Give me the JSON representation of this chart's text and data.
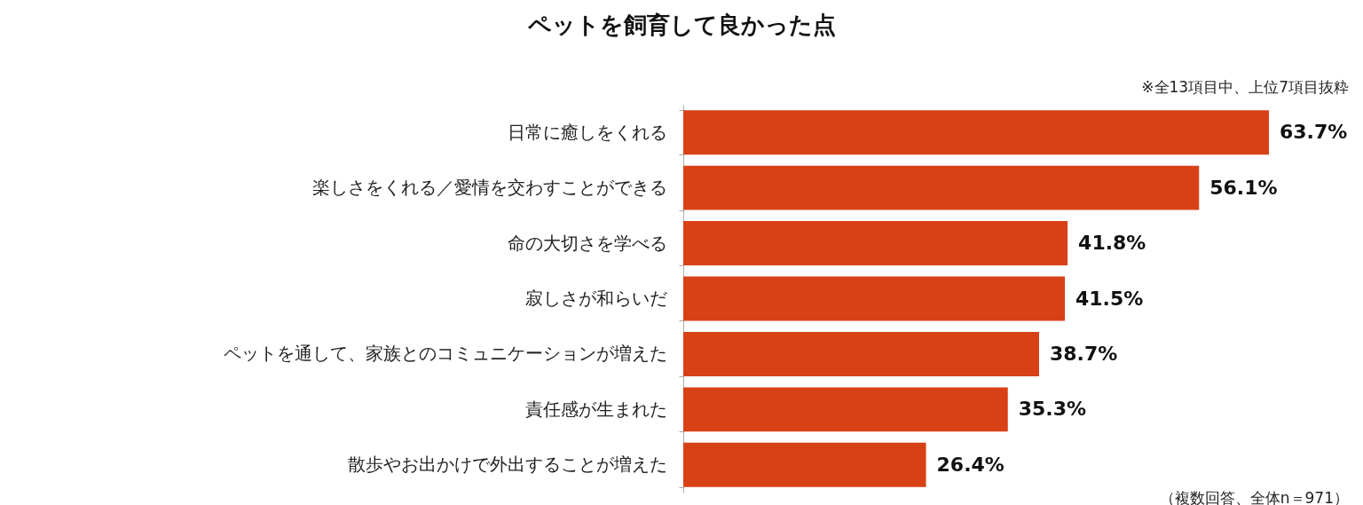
{
  "chart_data": {
    "type": "bar",
    "orientation": "horizontal",
    "title": "ペットを飼育して良かった点",
    "annotations": [
      "※全13項目中、上位7項目抜粋",
      "（複数回答、全体n＝971）"
    ],
    "categories": [
      "日常に癒しをくれる",
      "楽しさをくれる／愛情を交わすことができる",
      "命の大切さを学べる",
      "寂しさが和らいだ",
      "ペットを通して、家族とのコミュニケーションが増えた",
      "責任感が生まれた",
      "散歩やお出かけで外出することが増えた"
    ],
    "values": [
      63.7,
      56.1,
      41.8,
      41.5,
      38.7,
      35.3,
      26.4
    ],
    "value_labels": [
      "63.7%",
      "56.1%",
      "41.8%",
      "41.5%",
      "38.7%",
      "35.3%",
      "26.4%"
    ],
    "color": "#d84116",
    "grid": false
  }
}
